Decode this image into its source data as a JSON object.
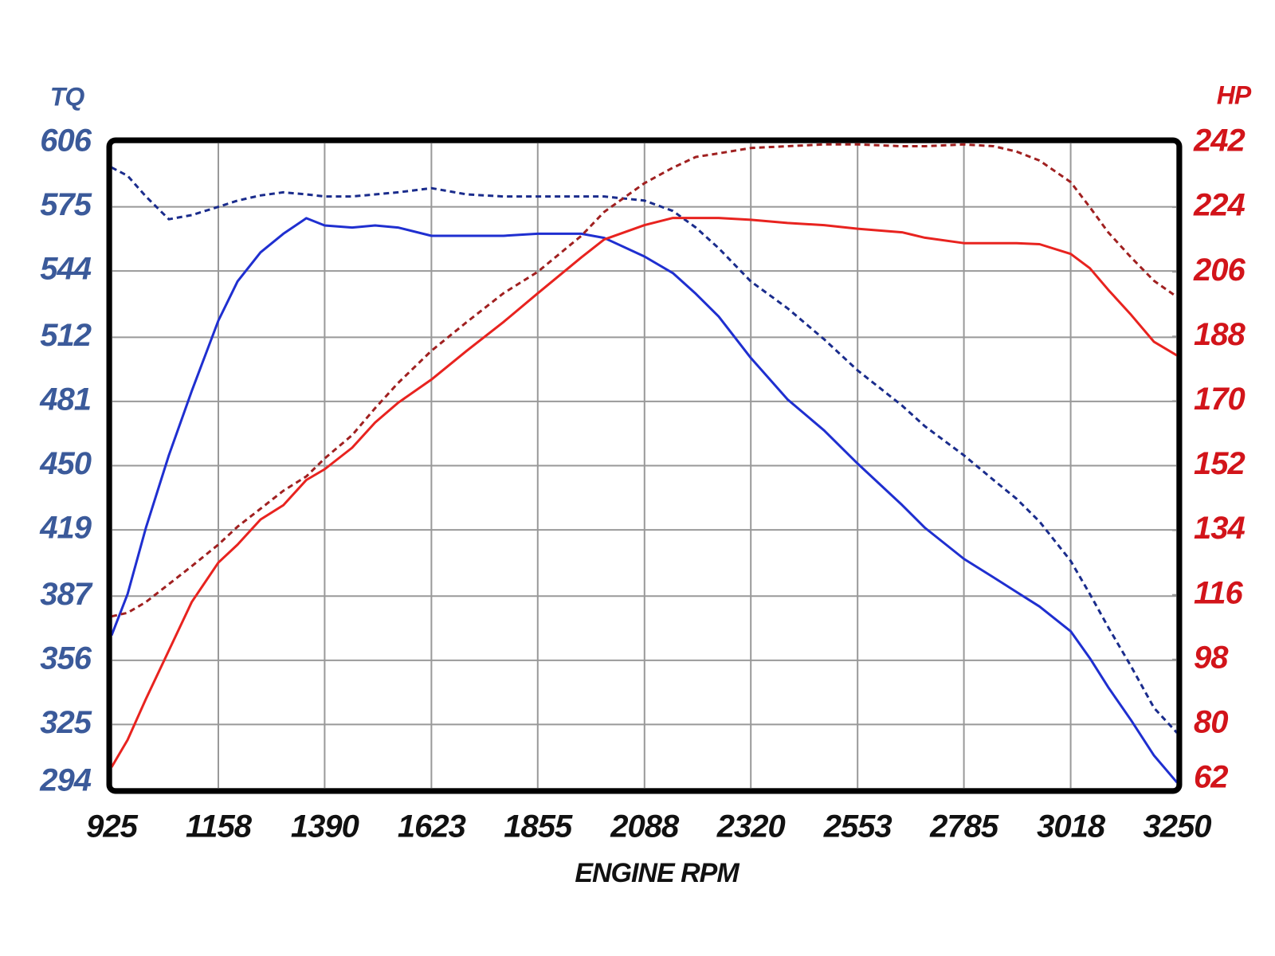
{
  "chart_data": {
    "type": "line",
    "y_label": "TQ",
    "y2_label": "HP",
    "x_label": "ENGINE RPM",
    "x": [
      925,
      960,
      1000,
      1050,
      1100,
      1158,
      1200,
      1250,
      1300,
      1350,
      1390,
      1450,
      1500,
      1550,
      1623,
      1700,
      1780,
      1855,
      1950,
      2000,
      2088,
      2150,
      2200,
      2250,
      2320,
      2400,
      2480,
      2553,
      2650,
      2700,
      2785,
      2850,
      2900,
      2950,
      3018,
      3060,
      3100,
      3150,
      3200,
      3250
    ],
    "xlim": [
      925,
      3250
    ],
    "xticks": [
      925,
      1158,
      1390,
      1623,
      1855,
      2088,
      2320,
      2553,
      2785,
      3018,
      3250
    ],
    "ylim": [
      294,
      606
    ],
    "yticks": [
      294,
      325,
      356,
      387,
      419,
      450,
      481,
      512,
      544,
      575,
      606
    ],
    "y2lim": [
      62,
      242
    ],
    "y2ticks": [
      62,
      80,
      98,
      116,
      134,
      152,
      170,
      188,
      206,
      224,
      242
    ],
    "grid": true,
    "y_color": "#3b5a9a",
    "y2_color": "#d2141a",
    "series": [
      {
        "color": "#1f2fd0",
        "style": "solid",
        "values": [
          368,
          388,
          420,
          455,
          486,
          520,
          539,
          553,
          562,
          569.5,
          566,
          565,
          566,
          565,
          561,
          561,
          561,
          562,
          562,
          560,
          551,
          543,
          533,
          522,
          502,
          482,
          467,
          451,
          431,
          420,
          405,
          396,
          389,
          382,
          370,
          357,
          343,
          327,
          310,
          297
        ]
      },
      {
        "color": "#1a2c8c",
        "style": "dashed",
        "values": [
          594,
          590,
          580,
          569,
          571,
          575,
          578,
          580.5,
          582,
          581,
          580,
          580,
          581,
          582,
          584,
          581,
          580,
          580,
          580,
          580,
          578,
          573,
          565,
          555,
          539,
          526,
          511,
          496,
          479,
          469,
          455,
          443,
          434,
          423,
          404,
          388,
          372,
          353,
          333,
          321
        ]
      },
      {
        "color": "#e8231f",
        "style": "solid",
        "axis": "y2",
        "values": [
          68,
          75.6,
          87,
          100.5,
          114,
          125,
          130,
          137,
          141,
          148,
          151,
          157,
          164,
          169.5,
          176,
          184,
          192,
          200,
          210,
          215,
          219,
          221,
          221,
          221,
          220.5,
          219.6,
          219,
          218,
          217,
          215.5,
          214,
          214,
          214,
          213.7,
          211,
          207,
          201,
          194,
          186.5,
          182.7
        ]
      },
      {
        "color": "#a02020",
        "style": "dashed",
        "axis": "y2",
        "values": [
          110,
          111,
          114,
          119,
          124,
          130,
          135,
          140,
          145,
          149,
          154,
          160.5,
          168,
          175,
          184,
          192,
          200,
          206,
          216,
          222.7,
          230.7,
          235,
          238,
          239,
          240.5,
          241,
          241.5,
          241.5,
          241,
          241,
          241.5,
          241,
          239.5,
          237,
          231,
          224,
          217,
          210,
          203.5,
          199
        ]
      }
    ]
  }
}
